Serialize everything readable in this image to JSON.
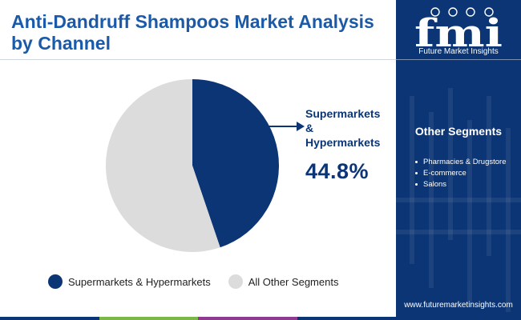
{
  "title": "Anti-Dandruff Shampoos Market Analysis by Channel",
  "brand": {
    "logo_text": "fmi",
    "name": "Future Market Insights",
    "website": "www.futuremarketinsights.com"
  },
  "other_segments": {
    "heading": "Other Segments",
    "items": [
      "Pharmacies & Drugstore",
      "E-commerce",
      "Salons"
    ]
  },
  "callout": {
    "label_lines": [
      "Supermarkets",
      "&",
      "Hypermarkets"
    ],
    "value": "44.8%"
  },
  "colors": {
    "primary": "#0b3574",
    "secondary": "#dcdcdc",
    "title": "#1b5aa8",
    "sidebar": "#0b3574",
    "bottom_bar": [
      "#0b3574",
      "#7ab648",
      "#8e3b8f",
      "#0b3574"
    ]
  },
  "chart_data": {
    "type": "pie",
    "title": "",
    "slices": [
      {
        "label": "Supermarkets & Hypermarkets",
        "value": 44.8,
        "color": "#0b3574"
      },
      {
        "label": "All Other Segments",
        "value": 55.2,
        "color": "#dcdcdc"
      }
    ],
    "start_angle": "12 o'clock",
    "direction": "clockwise",
    "legend_position": "bottom"
  }
}
